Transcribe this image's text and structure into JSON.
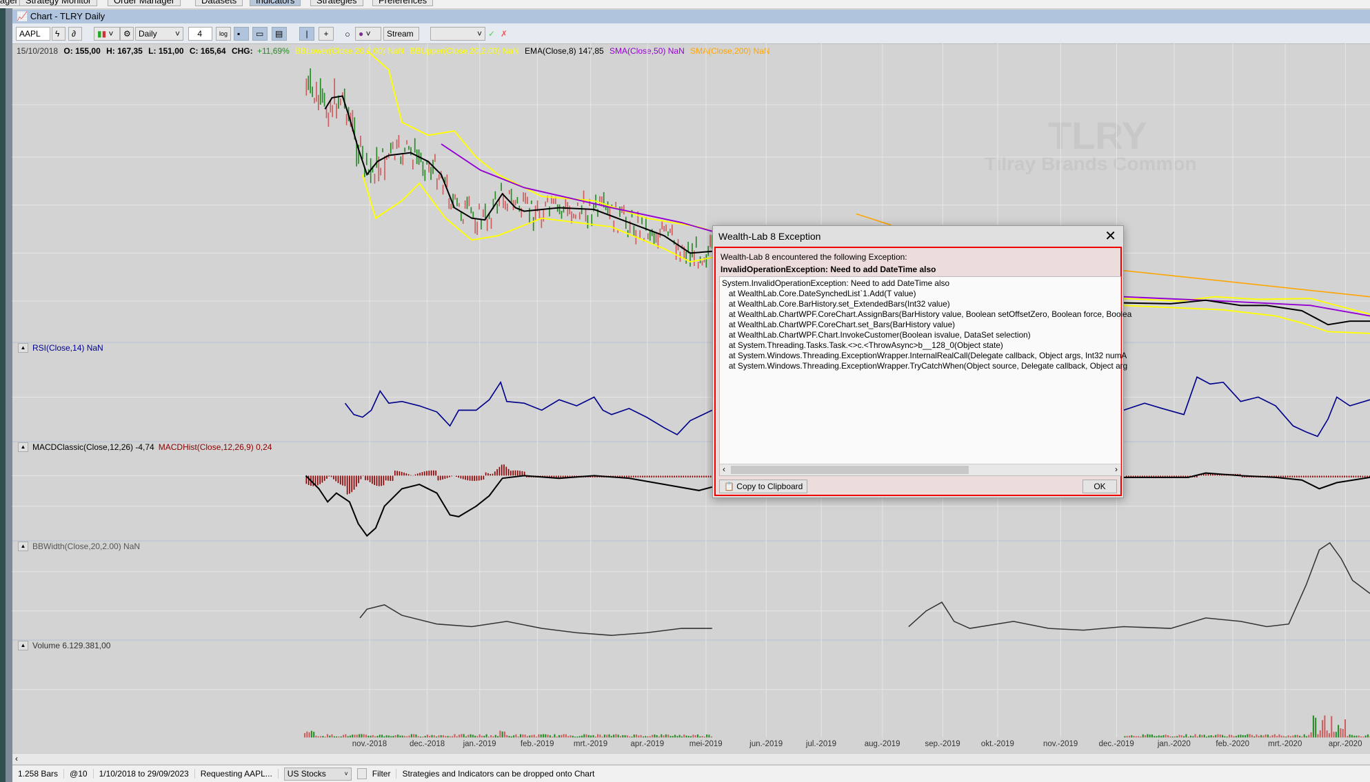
{
  "top_tabs": [
    {
      "label": "...ager"
    },
    {
      "label": "Strategy Monitor"
    },
    {
      "label": "Order Manager"
    },
    {
      "label": "Datasets"
    },
    {
      "label": "Indicators"
    },
    {
      "label": "Strategies"
    },
    {
      "label": "Preferences"
    }
  ],
  "window": {
    "title": "Chart - TLRY Daily"
  },
  "toolbar": {
    "symbol": "AAPL",
    "scale": "Daily",
    "bars_spacing": "4",
    "log_label": "log",
    "stream_label": "Stream",
    "combo_value": ""
  },
  "info": {
    "date": "15/10/2018",
    "open": "O: 155,00",
    "high": "H: 167,35",
    "low": "L: 151,00",
    "close": "C: 165,64",
    "chg_label": "CHG:",
    "chg_value": "+11,69%",
    "bb_lower": "BBLower(Close,20,2.00) NaN",
    "bb_upper": "BBUpper(Close,20,2.00) NaN",
    "ema": "EMA(Close,8) 147,85",
    "sma50": "SMA(Close,50) NaN",
    "sma200": "SMA(Close,200) NaN"
  },
  "watermark": {
    "symbol": "TLRY",
    "name": "Tilray Brands Common"
  },
  "panes": {
    "rsi": "RSI(Close,14) NaN",
    "macd": "MACDClassic(Close,12,26) -4,74",
    "macd_hist": "MACDHist(Close,12,26,9) 0,24",
    "bbwidth": "BBWidth(Close,20,2.00) NaN",
    "volume": "Volume 6.129.381,00"
  },
  "x_axis": [
    "nov.-2018",
    "dec.-2018",
    "jan.-2019",
    "feb.-2019",
    "mrt.-2019",
    "apr.-2019",
    "mei-2019",
    "jun.-2019",
    "jul.-2019",
    "aug.-2019",
    "sep.-2019",
    "okt.-2019",
    "nov.-2019",
    "dec.-2019",
    "jan.-2020",
    "feb.-2020",
    "mrt.-2020",
    "apr.-2020"
  ],
  "status": {
    "bars": "1.258 Bars",
    "interval": "@10",
    "range": "1/10/2018 to 29/09/2023",
    "request": "Requesting AAPL...",
    "dataset": "US Stocks",
    "filter": "Filter",
    "hint": "Strategies and Indicators can be dropped onto Chart"
  },
  "dialog": {
    "title": "Wealth-Lab 8 Exception",
    "message": "Wealth-Lab 8 encountered the following Exception:",
    "summary": "InvalidOperationException: Need to add DateTime also",
    "trace": [
      "System.InvalidOperationException: Need to add DateTime also",
      "   at WealthLab.Core.DateSynchedList`1.Add(T value)",
      "   at WealthLab.Core.BarHistory.set_ExtendedBars(Int32 value)",
      "   at WealthLab.ChartWPF.CoreChart.AssignBars(BarHistory value, Boolean setOffsetZero, Boolean force, Boolea",
      "   at WealthLab.ChartWPF.CoreChart.set_Bars(BarHistory value)",
      "   at WealthLab.ChartWPF.Chart.InvokeCustomer(Boolean isvalue, DataSet selection)",
      "   at System.Threading.Tasks.Task.<>c.<ThrowAsync>b__128_0(Object state)",
      "   at System.Windows.Threading.ExceptionWrapper.InternalRealCall(Delegate callback, Object args, Int32 numA",
      "   at System.Windows.Threading.ExceptionWrapper.TryCatchWhen(Object source, Delegate callback, Object arg"
    ],
    "copy_label": "Copy to Clipboard",
    "ok_label": "OK"
  },
  "colors": {
    "ema": "#000000",
    "bb": "#ffff00",
    "sma50": "#9400d3",
    "sma200": "#ffa500",
    "rsi": "#00008b",
    "macd_hist": "#8b0000",
    "up": "#228b22",
    "down": "#cd5c5c",
    "dialog_border": "#ee0000"
  }
}
